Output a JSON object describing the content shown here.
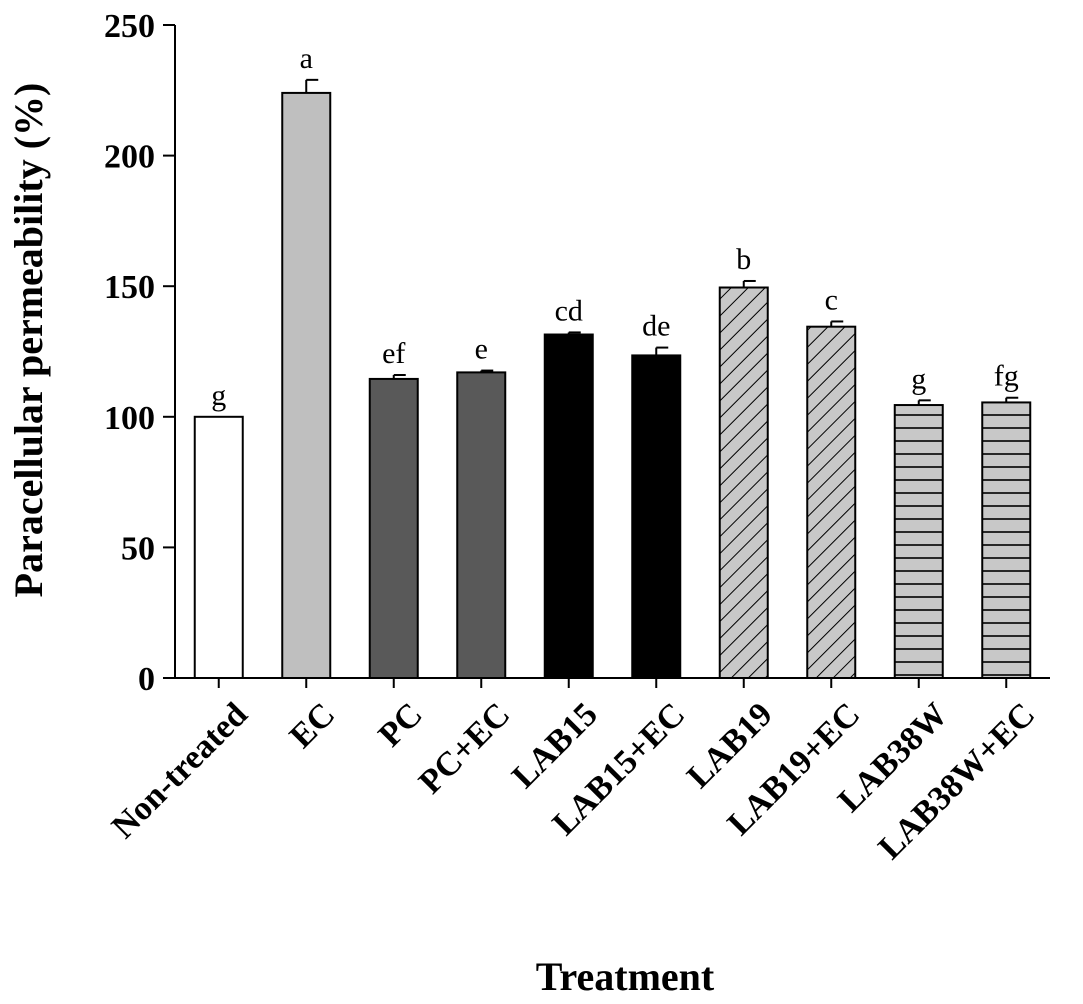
{
  "chart_data": {
    "type": "bar",
    "xlabel": "Treatment",
    "ylabel": "Paracellular permeability (%)",
    "ylim": [
      0,
      250
    ],
    "yticks": [
      0,
      50,
      100,
      150,
      200,
      250
    ],
    "categories": [
      "Non-treated",
      "EC",
      "PC",
      "PC+EC",
      "LAB15",
      "LAB15+EC",
      "LAB19",
      "LAB19+EC",
      "LAB38W",
      "LAB38W+EC"
    ],
    "values": [
      100,
      224,
      114.5,
      117,
      131.5,
      123.5,
      149.5,
      134.5,
      104.5,
      105.5
    ],
    "errors": [
      0,
      5,
      1.5,
      0.7,
      0.8,
      3,
      2.5,
      2,
      1.8,
      1.8
    ],
    "significance": [
      "g",
      "a",
      "ef",
      "e",
      "cd",
      "de",
      "b",
      "c",
      "g",
      "fg"
    ],
    "fills": [
      "#ffffff",
      "#bfbfbf",
      "#595959",
      "#595959",
      "#000000",
      "#000000",
      "#c8c8c8",
      "#c8c8c8",
      "#c8c8c8",
      "#c8c8c8"
    ],
    "patterns": [
      "none",
      "none",
      "none",
      "none",
      "none",
      "none",
      "diagonal-hatch",
      "diagonal-hatch",
      "horizontal-lines",
      "horizontal-lines"
    ],
    "grid": false,
    "legend": "none"
  }
}
